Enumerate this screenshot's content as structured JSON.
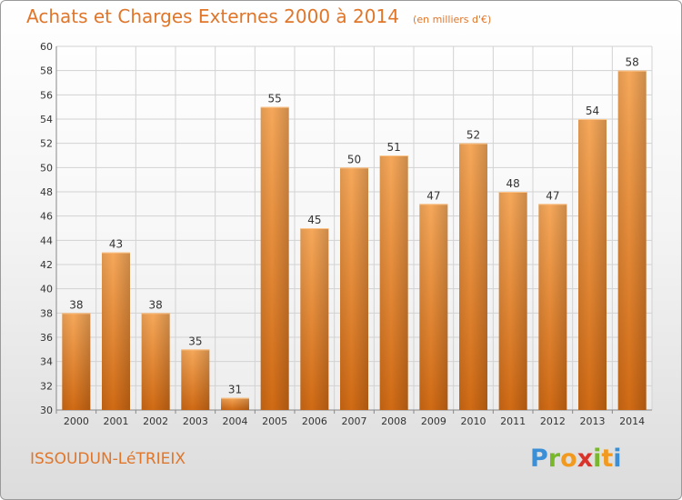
{
  "header": {
    "title": "Achats et Charges Externes 2000 à 2014",
    "subtitle": "(en milliers d'€)"
  },
  "footer": {
    "commune": "ISSOUDUN-LéTRIEIX",
    "logo_text": "Proxiti"
  },
  "colors": {
    "accent": "#e0762a",
    "bar_top": "#f6a85a",
    "bar_bottom": "#d06a14",
    "grid": "#d2d2d2"
  },
  "chart_data": {
    "type": "bar",
    "title": "Achats et Charges Externes 2000 à 2014",
    "subtitle": "(en milliers d'€)",
    "categories": [
      "2000",
      "2001",
      "2002",
      "2003",
      "2004",
      "2005",
      "2006",
      "2007",
      "2008",
      "2009",
      "2010",
      "2011",
      "2012",
      "2013",
      "2014"
    ],
    "values": [
      38,
      43,
      38,
      35,
      31,
      55,
      45,
      50,
      51,
      47,
      52,
      48,
      47,
      54,
      58
    ],
    "ylim": [
      30,
      60
    ],
    "yticks": [
      30,
      32,
      34,
      36,
      38,
      40,
      42,
      44,
      46,
      48,
      50,
      52,
      54,
      56,
      58,
      60
    ],
    "grid": true,
    "legend": "none",
    "xlabel": "",
    "ylabel": ""
  }
}
